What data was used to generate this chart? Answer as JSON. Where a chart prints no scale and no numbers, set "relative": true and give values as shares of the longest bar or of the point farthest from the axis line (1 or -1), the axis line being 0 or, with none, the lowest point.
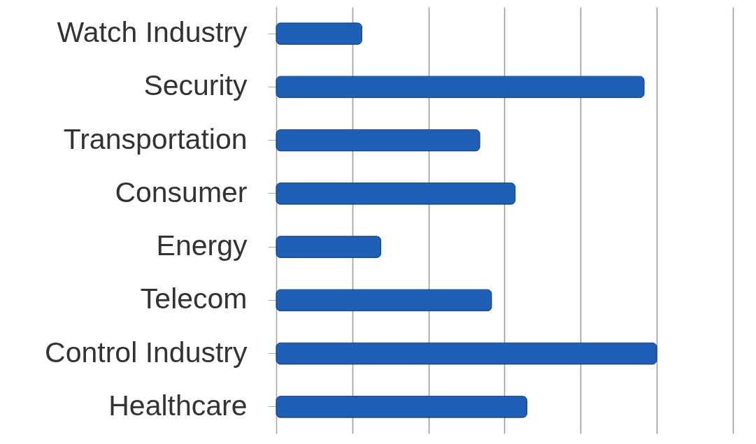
{
  "chart_data": {
    "type": "bar",
    "orientation": "horizontal",
    "relative": true,
    "grid": "x",
    "categories": [
      "Watch Industry",
      "Security",
      "Transportation",
      "Consumer",
      "Energy",
      "Telecom ",
      "Control Industry",
      "Healthcare"
    ],
    "values": [
      0.225,
      0.967,
      0.535,
      0.628,
      0.275,
      0.566,
      1,
      0.659
    ],
    "color": "#1f5fb5"
  }
}
